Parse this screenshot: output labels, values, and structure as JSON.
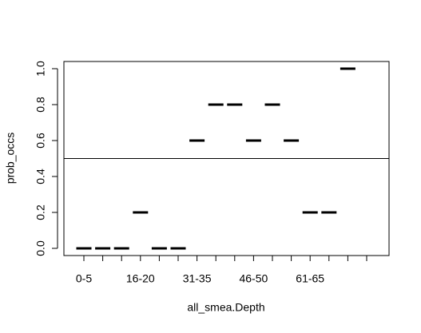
{
  "chart_data": {
    "type": "dash",
    "x_label": "all_smea.Depth",
    "y_label": "prob_occs",
    "categories": [
      "0-5",
      null,
      null,
      "16-20",
      null,
      null,
      "31-35",
      null,
      null,
      "46-50",
      null,
      null,
      "61-65",
      null,
      null,
      null
    ],
    "values": [
      0,
      0,
      0,
      0.2,
      0,
      0,
      0.6,
      0.8,
      0.8,
      0.6,
      0.8,
      0.6,
      0.2,
      0.2,
      1.0,
      null
    ],
    "color": "#000000",
    "ylim": [
      -0.04,
      1.04
    ],
    "yticks": [
      {
        "value": 0,
        "label": "0.0"
      },
      0.2,
      0.4,
      0.6,
      0.8,
      {
        "value": 1,
        "label": "1.0"
      }
    ],
    "hline": 0.5
  }
}
